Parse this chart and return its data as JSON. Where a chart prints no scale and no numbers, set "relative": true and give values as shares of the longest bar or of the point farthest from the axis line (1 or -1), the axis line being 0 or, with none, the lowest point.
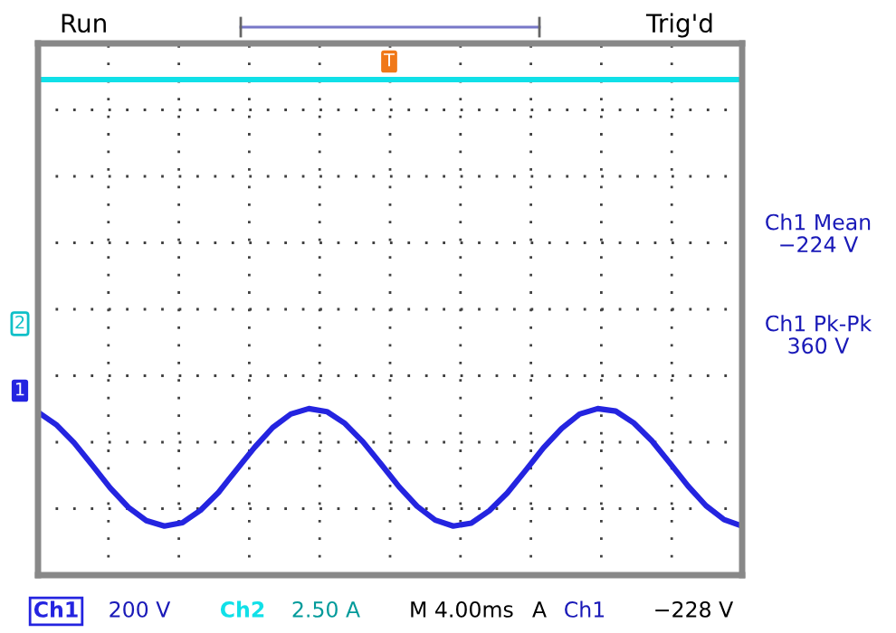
{
  "chart_data": {
    "type": "line",
    "relative": true,
    "grid": true,
    "tick_labels": false,
    "marker": "none",
    "line_style": "solid",
    "categories": [
      null,
      null,
      null,
      null,
      null,
      null,
      null,
      null,
      null,
      null,
      null,
      null,
      null,
      null,
      null,
      null,
      null,
      null,
      null,
      null,
      null,
      null,
      null,
      null,
      null,
      null,
      null,
      null,
      null,
      null,
      null,
      null,
      null,
      null,
      null,
      null,
      null,
      null,
      null,
      null
    ],
    "series": [
      {
        "name": "Ch1",
        "color": "#2424e0",
        "values": [
          0.329,
          0.304,
          0.267,
          0.222,
          0.176,
          0.137,
          0.11,
          0.099,
          0.106,
          0.131,
          0.167,
          0.213,
          0.258,
          0.298,
          0.325,
          0.336,
          0.33,
          0.306,
          0.269,
          0.224,
          0.178,
          0.139,
          0.111,
          0.099,
          0.105,
          0.13,
          0.166,
          0.211,
          0.257,
          0.296,
          0.325,
          0.336,
          0.331,
          0.307,
          0.271,
          0.226,
          0.18,
          0.14,
          0.112,
          0.099
        ]
      },
      {
        "name": "Ch2",
        "color": "#10e0e8",
        "values": [
          1,
          1,
          1,
          1,
          1,
          1,
          1,
          1,
          1,
          1,
          1,
          1,
          1,
          1,
          1,
          1,
          1,
          1,
          1,
          1,
          1,
          1,
          1,
          1,
          1,
          1,
          1,
          1,
          1,
          1,
          1,
          1,
          1,
          1,
          1,
          1,
          1,
          1,
          1,
          1
        ]
      }
    ],
    "annotations": [
      "Run",
      "Trig'd",
      "Ch1 Mean\n−224 V",
      "Ch1 Pk-Pk\n360 V",
      "200 V",
      "2.50 A",
      "M 4.00ms",
      "A",
      "Ch1",
      "−228 V",
      "T",
      "1",
      "2"
    ]
  }
}
